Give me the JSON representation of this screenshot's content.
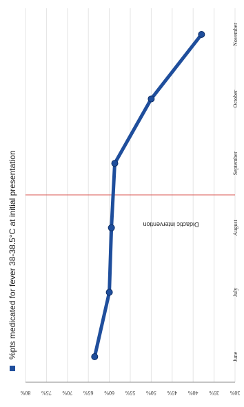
{
  "chart_data": {
    "type": "line",
    "orientation": "rotated-90-clockwise",
    "categories": [
      "June",
      "July",
      "August",
      "September",
      "October",
      "November"
    ],
    "series": [
      {
        "name": "%pts medicated for fever 38-38.5°C at initial presentation",
        "values": [
          0.635,
          0.6,
          0.595,
          0.587,
          0.5,
          0.38
        ],
        "color": "#1f4e9c"
      }
    ],
    "ylim": [
      0.3,
      0.8
    ],
    "yticks": [
      "30%",
      "35%",
      "40%",
      "45%",
      "50%",
      "55%",
      "60%",
      "65%",
      "70%",
      "75%",
      "80%"
    ],
    "grid": true,
    "legend_position": "top",
    "annotation": {
      "text": "Didactic intervention",
      "position_between": [
        "August",
        "September"
      ],
      "color": "#d9534f"
    }
  }
}
